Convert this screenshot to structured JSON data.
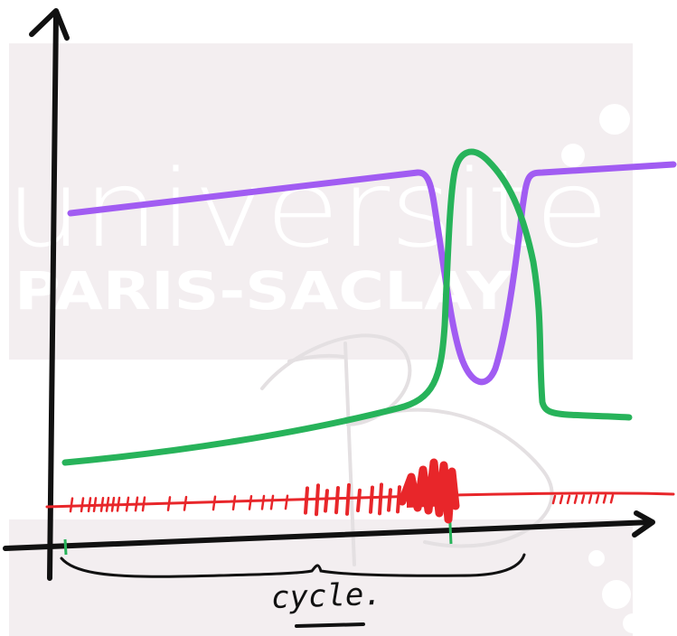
{
  "watermark": {
    "line1": "universite",
    "line2": "PARIS-SACLAY",
    "initials": "PB",
    "panel_color": "#f3eef0"
  },
  "diagram": {
    "x_axis_label": "cycle.",
    "colors": {
      "axis": "#111111",
      "purple_curve": "#a15cf2",
      "green_curve": "#27b35a",
      "red_spikes": "#e8262a"
    }
  }
}
